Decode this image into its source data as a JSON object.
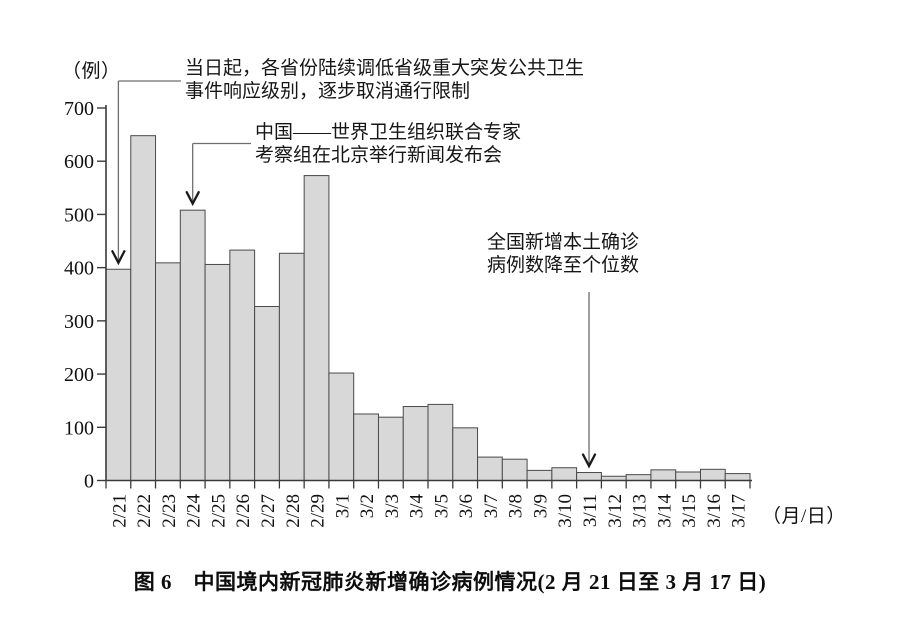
{
  "figure": {
    "caption": "图 6　中国境内新冠肺炎新增确诊病例情况(2 月 21 日至 3 月 17 日)"
  },
  "chart_data": {
    "type": "bar",
    "title": "图 6　中国境内新冠肺炎新增确诊病例情况(2 月 21 日至 3 月 17 日)",
    "y_axis_unit": "（例）",
    "x_axis_unit": "（月/日）",
    "xlabel": "月/日",
    "ylabel": "例",
    "ylim": [
      0,
      700
    ],
    "y_ticks": [
      0,
      100,
      200,
      300,
      400,
      500,
      600,
      700
    ],
    "grid": false,
    "legend": false,
    "bar_fill_color": "#d8d8d8",
    "bar_border_color": "#4a4a4a",
    "categories": [
      "2/21",
      "2/22",
      "2/23",
      "2/24",
      "2/25",
      "2/26",
      "2/27",
      "2/28",
      "2/29",
      "3/1",
      "3/2",
      "3/3",
      "3/4",
      "3/5",
      "3/6",
      "3/7",
      "3/8",
      "3/9",
      "3/10",
      "3/11",
      "3/12",
      "3/13",
      "3/14",
      "3/15",
      "3/16",
      "3/17"
    ],
    "values": [
      397,
      648,
      409,
      508,
      406,
      433,
      327,
      427,
      573,
      202,
      125,
      119,
      139,
      143,
      99,
      44,
      40,
      19,
      24,
      15,
      8,
      11,
      20,
      16,
      21,
      13
    ],
    "annotations": [
      {
        "lines": [
          "当日起，各省份陆续调低省级重大突发公共卫生",
          "事件响应级别，逐步取消通行限制"
        ],
        "target": "2/21"
      },
      {
        "lines": [
          "中国——世界卫生组织联合专家",
          "考察组在北京举行新闻发布会"
        ],
        "target": "2/24"
      },
      {
        "lines": [
          "全国新增本土确诊",
          "病例数降至个位数"
        ],
        "target": "3/11"
      }
    ]
  }
}
